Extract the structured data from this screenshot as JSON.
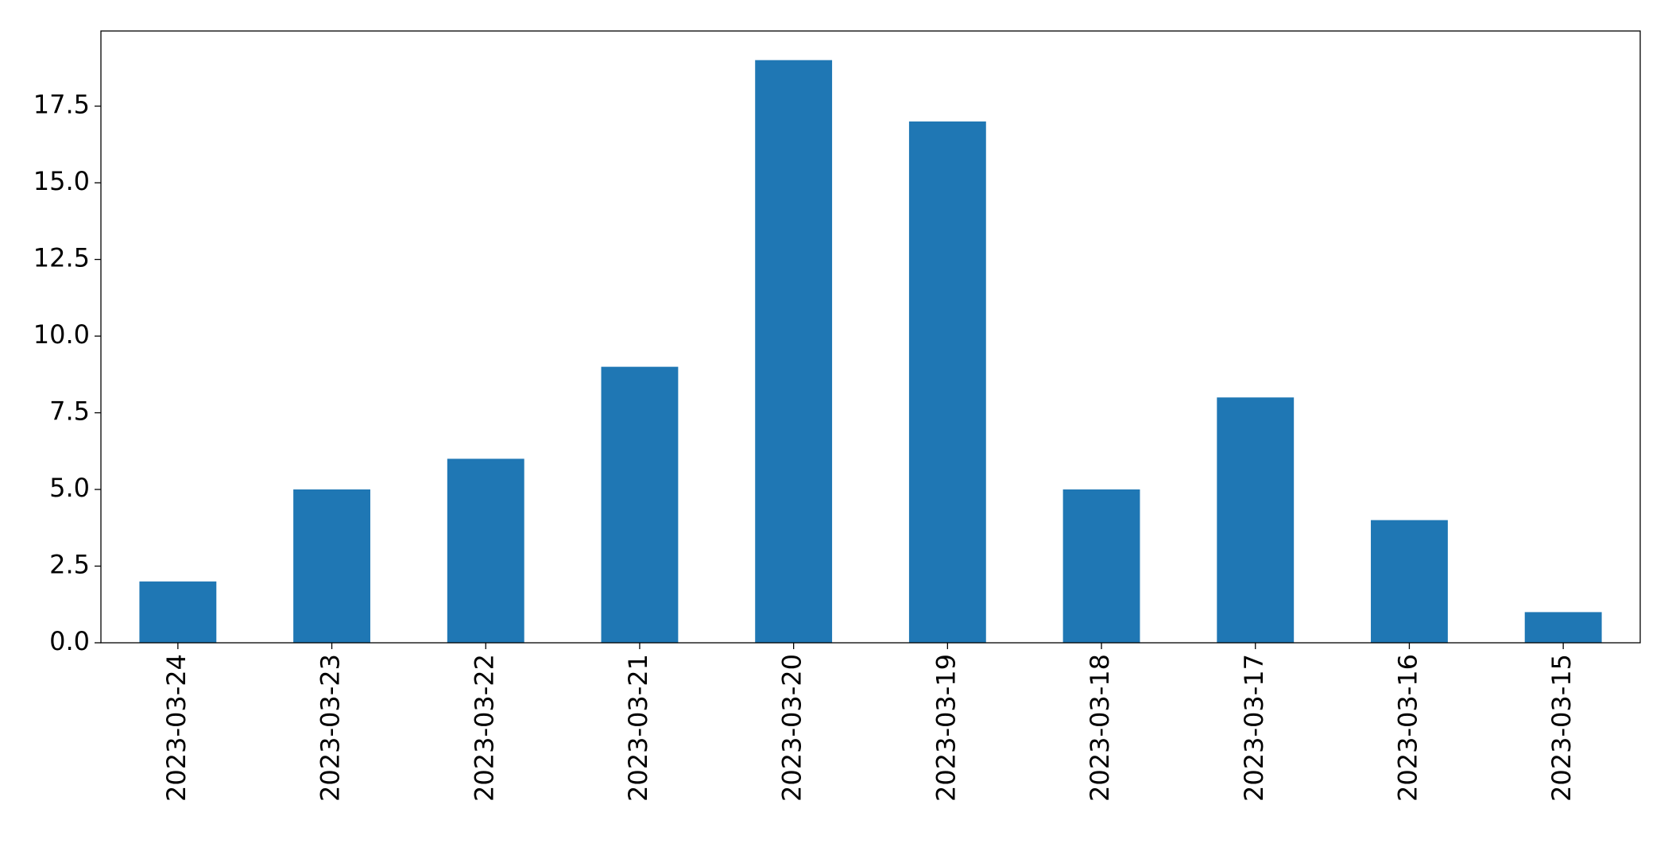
{
  "chart_data": {
    "type": "bar",
    "categories": [
      "2023-03-24",
      "2023-03-23",
      "2023-03-22",
      "2023-03-21",
      "2023-03-20",
      "2023-03-19",
      "2023-03-18",
      "2023-03-17",
      "2023-03-16",
      "2023-03-15"
    ],
    "values": [
      2,
      5,
      6,
      9,
      19,
      17,
      5,
      8,
      4,
      1
    ],
    "color": "#1f77b4",
    "ylim": [
      0,
      19.95
    ],
    "yticks": [
      {
        "value": 0,
        "label": "0.0"
      },
      {
        "value": 2.5,
        "label": "2.5"
      },
      {
        "value": 5,
        "label": "5.0"
      },
      {
        "value": 7.5,
        "label": "7.5"
      },
      {
        "value": 10,
        "label": "10.0"
      },
      {
        "value": 12.5,
        "label": "12.5"
      },
      {
        "value": 15,
        "label": "15.0"
      },
      {
        "value": 17.5,
        "label": "17.5"
      }
    ],
    "grid": false
  }
}
